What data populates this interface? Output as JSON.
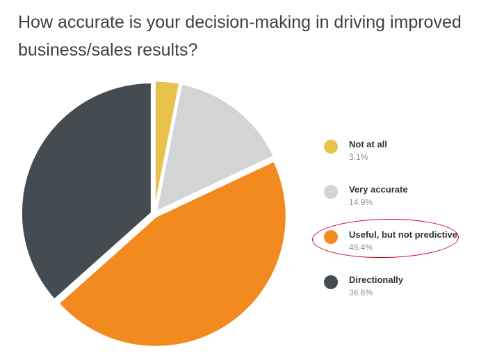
{
  "chart_data": {
    "type": "pie",
    "title": "How accurate is your decision-making in driving improved business/sales results?",
    "slices": [
      {
        "label": "Not at all",
        "value": 3.1,
        "value_label": "3.1%",
        "color": "#e8c24a"
      },
      {
        "label": "Very accurate",
        "value": 14.9,
        "value_label": "14.9%",
        "color": "#d3d4d6"
      },
      {
        "label": "Useful, but not predictive",
        "value": 45.4,
        "value_label": "45.4%",
        "color": "#f28a20"
      },
      {
        "label": "Directionally",
        "value": 36.6,
        "value_label": "36.6%",
        "color": "#444c52"
      }
    ],
    "legend_position": "right",
    "highlighted_legend_item": "Useful, but not predictive",
    "highlight_color": "#d0021b"
  }
}
